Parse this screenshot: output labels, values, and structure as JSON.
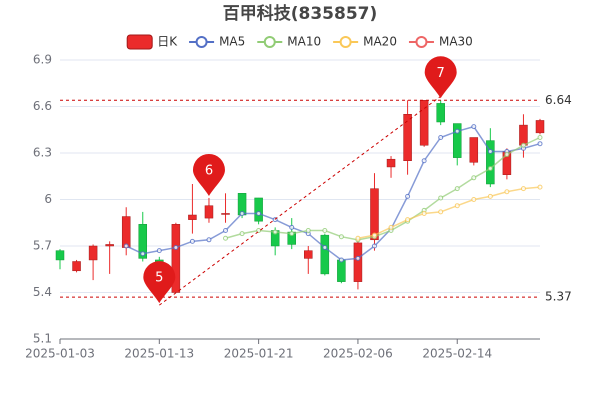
{
  "chart_data": {
    "type": "candlestick",
    "title": "百甲科技(835857)",
    "categories": [
      "2025-01-03",
      null,
      null,
      null,
      null,
      null,
      "2025-01-13",
      null,
      null,
      null,
      null,
      null,
      "2025-01-21",
      null,
      null,
      null,
      null,
      null,
      "2025-02-06",
      null,
      null,
      null,
      null,
      null,
      "2025-02-14",
      null,
      null,
      null,
      null,
      null
    ],
    "ylim": [
      5.1,
      6.9
    ],
    "yticks": [
      5.1,
      5.4,
      5.7,
      6,
      6.3,
      6.6,
      6.9
    ],
    "grid": true,
    "series": [
      {
        "name": "日K",
        "type": "candlestick",
        "color": "#eb2b2b",
        "down_color": "#17c94a",
        "open": [
          5.67,
          5.54,
          5.61,
          5.7,
          5.69,
          5.84,
          5.61,
          5.4,
          5.87,
          5.88,
          5.91,
          6.04,
          6.01,
          5.8,
          5.79,
          5.62,
          5.77,
          5.61,
          5.47,
          5.74,
          6.21,
          6.25,
          6.35,
          6.62,
          6.49,
          6.24,
          6.38,
          6.16,
          6.35,
          6.43
        ],
        "close": [
          5.61,
          5.6,
          5.7,
          5.71,
          5.89,
          5.62,
          5.52,
          5.84,
          5.9,
          5.96,
          5.91,
          5.9,
          5.86,
          5.7,
          5.71,
          5.67,
          5.52,
          5.47,
          5.72,
          6.07,
          6.26,
          6.55,
          6.64,
          6.5,
          6.27,
          6.4,
          6.1,
          6.31,
          6.48,
          6.51
        ],
        "low": [
          5.55,
          5.53,
          5.48,
          5.52,
          5.64,
          5.6,
          5.37,
          5.4,
          5.78,
          5.85,
          5.85,
          5.88,
          5.84,
          5.64,
          5.68,
          5.52,
          5.51,
          5.46,
          5.42,
          5.67,
          6.14,
          6.16,
          6.34,
          6.48,
          6.22,
          6.22,
          6.08,
          6.13,
          6.27,
          6.42
        ],
        "high": [
          5.68,
          5.61,
          5.71,
          5.73,
          5.95,
          5.92,
          5.63,
          5.85,
          6.1,
          6.01,
          6.04,
          6.04,
          6.01,
          5.82,
          5.88,
          5.7,
          5.78,
          5.62,
          5.75,
          6.17,
          6.28,
          6.64,
          6.63,
          6.64,
          6.49,
          6.4,
          6.46,
          6.33,
          6.55,
          6.52
        ]
      },
      {
        "name": "MA5",
        "type": "line",
        "color": "#5470c6",
        "values": [
          null,
          null,
          null,
          null,
          5.7,
          5.65,
          5.67,
          5.69,
          5.73,
          5.74,
          5.8,
          5.91,
          5.91,
          5.87,
          5.82,
          5.78,
          5.69,
          5.61,
          5.62,
          5.7,
          5.81,
          6.02,
          6.25,
          6.4,
          6.44,
          6.47,
          6.31,
          6.31,
          6.33,
          6.36
        ]
      },
      {
        "name": "MA10",
        "type": "line",
        "color": "#91cc75",
        "values": [
          null,
          null,
          null,
          null,
          null,
          null,
          null,
          null,
          null,
          null,
          5.75,
          5.78,
          5.8,
          5.79,
          5.78,
          5.8,
          5.8,
          5.76,
          5.74,
          5.76,
          5.8,
          5.86,
          5.93,
          6.01,
          6.07,
          6.14,
          6.2,
          6.29,
          6.35,
          6.4
        ]
      },
      {
        "name": "MA20",
        "type": "line",
        "color": "#fac858",
        "values": [
          null,
          null,
          null,
          null,
          null,
          null,
          null,
          null,
          null,
          null,
          null,
          null,
          null,
          null,
          null,
          null,
          null,
          null,
          5.75,
          5.77,
          5.82,
          5.87,
          5.91,
          5.92,
          5.96,
          6.0,
          6.02,
          6.05,
          6.07,
          6.08
        ]
      },
      {
        "name": "MA30",
        "type": "line",
        "color": "#ee6666",
        "values": [
          null,
          null,
          null,
          null,
          null,
          null,
          null,
          null,
          null,
          null,
          null,
          null,
          null,
          null,
          null,
          null,
          null,
          null,
          null,
          null,
          null,
          null,
          null,
          null,
          null,
          null,
          null,
          null,
          null,
          null
        ]
      }
    ],
    "mark_lines": [
      {
        "value": 6.64
      },
      {
        "value": 5.37
      }
    ],
    "mark_points": [
      {
        "label": "5",
        "index": 6
      },
      {
        "label": "6",
        "index": 9
      },
      {
        "label": "7",
        "index": 23
      }
    ]
  }
}
